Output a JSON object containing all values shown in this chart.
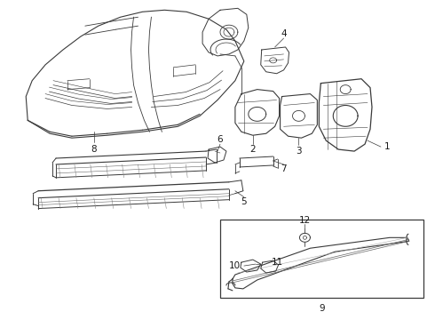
{
  "background_color": "#ffffff",
  "figsize": [
    4.9,
    3.6
  ],
  "dpi": 100,
  "line_color": "#3a3a3a",
  "label_fontsize": 7.5
}
